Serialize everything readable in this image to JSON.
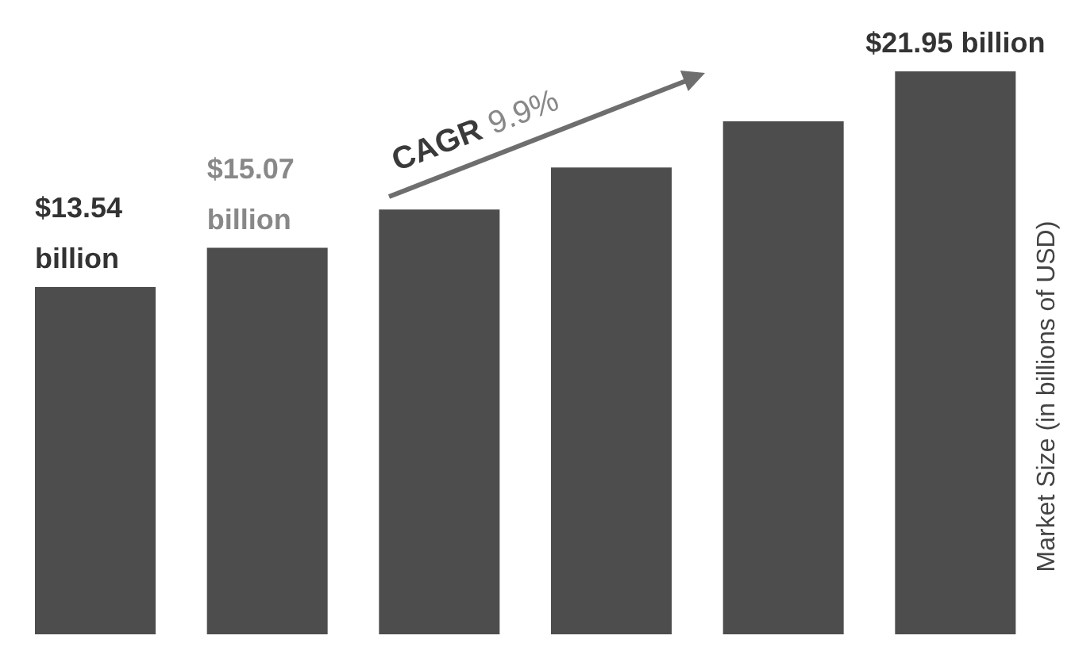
{
  "chart_data": {
    "type": "bar",
    "ylabel": "Market Size (in billions of USD)",
    "categories": [
      null,
      null,
      null,
      null,
      null,
      null
    ],
    "values": [
      13.54,
      15.07,
      16.56,
      18.2,
      20.0,
      21.95
    ],
    "color": "#4d4d4d",
    "value_labels": [
      "$13.54 billion",
      "$15.07 billion",
      null,
      null,
      null,
      "$21.95 billion"
    ],
    "tick_labels": false,
    "annotations": [
      "CAGR 9.9%"
    ]
  }
}
